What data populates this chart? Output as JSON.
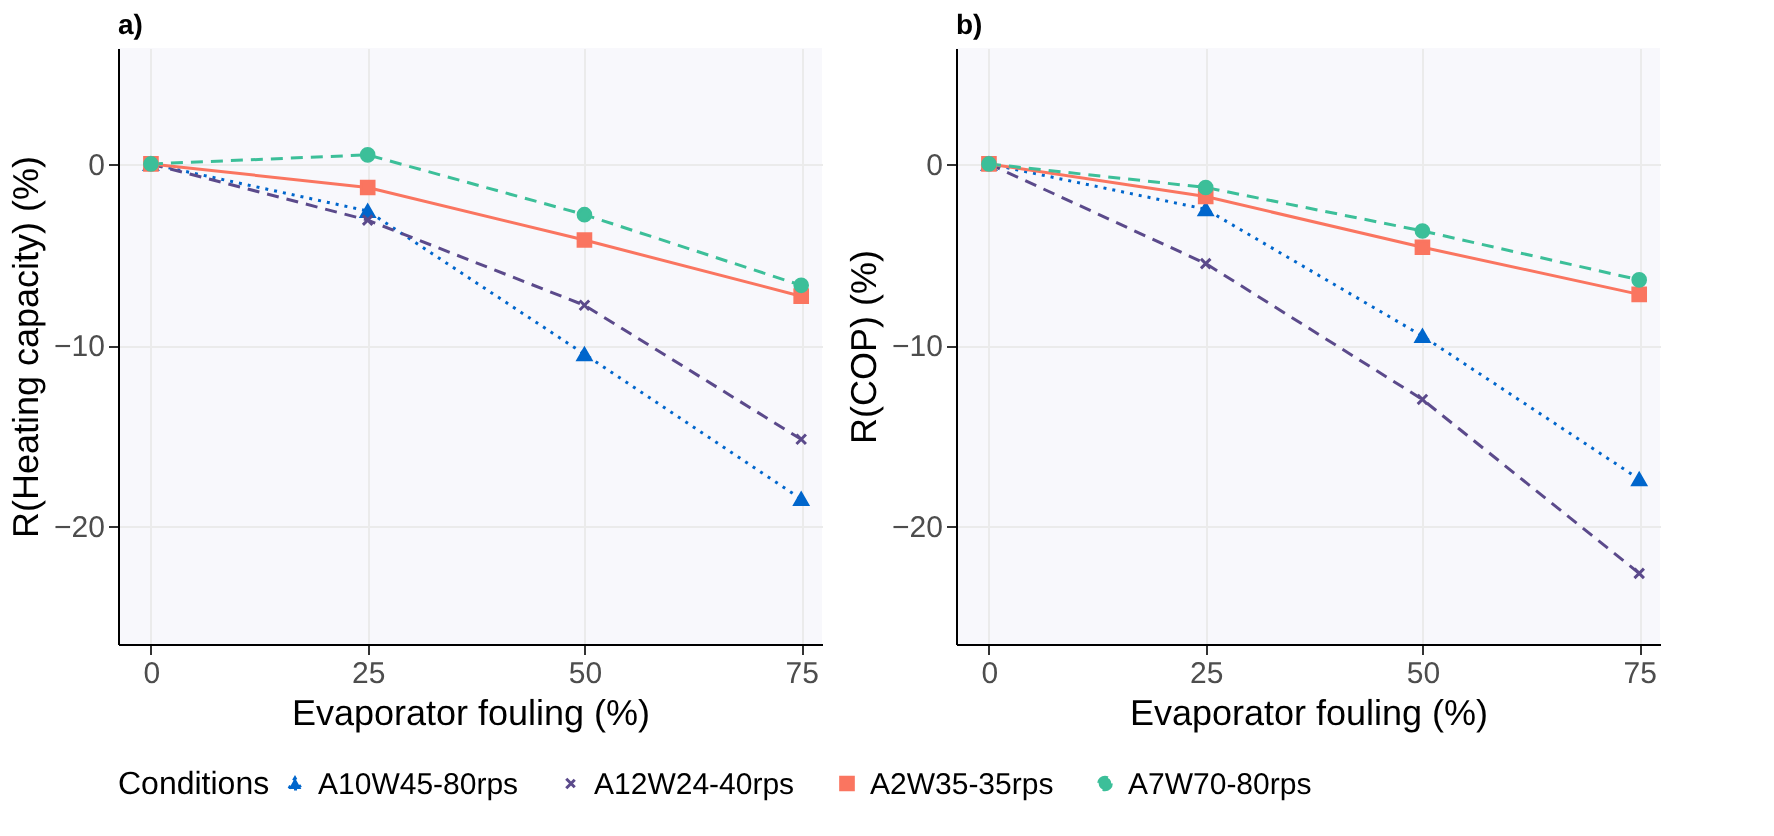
{
  "chart_data": [
    {
      "type": "line",
      "title": "a)",
      "xlabel": "Evaporator fouling (%)",
      "ylabel": "R(Heating capacity) (%)",
      "legend_title": "Conditions",
      "x": [
        0,
        25,
        50,
        75
      ],
      "xlim": [
        -3.8,
        77.4
      ],
      "xticks": [
        0,
        25,
        50,
        75
      ],
      "ylim": [
        -26.5,
        6.4
      ],
      "yticks": [
        0,
        -10,
        -20
      ],
      "grid": true,
      "legend": "bottom",
      "series": [
        {
          "name": "A10W45-80rps",
          "color": "#0066cc",
          "marker": "triangle",
          "line_style": "dotted",
          "values": [
            0,
            -2.6,
            -10.5,
            -18.5
          ]
        },
        {
          "name": "A12W24-40rps",
          "color": "#5b4a8b",
          "marker": "cross",
          "line_style": "dashed",
          "values": [
            0,
            -3.1,
            -7.8,
            -15.2
          ]
        },
        {
          "name": "A2W35-35rps",
          "color": "#fa7560",
          "marker": "square",
          "line_style": "solid",
          "values": [
            0,
            -1.3,
            -4.2,
            -7.3
          ]
        },
        {
          "name": "A7W70-80rps",
          "color": "#3cbf99",
          "marker": "circle",
          "line_style": "dashed",
          "values": [
            0,
            0.5,
            -2.8,
            -6.7
          ]
        }
      ]
    },
    {
      "type": "line",
      "title": "b)",
      "xlabel": "Evaporator fouling (%)",
      "ylabel": "R(COP) (%)",
      "x": [
        0,
        25,
        50,
        75
      ],
      "xlim": [
        -3.8,
        77.4
      ],
      "xticks": [
        0,
        25,
        50,
        75
      ],
      "ylim": [
        -26.5,
        6.4
      ],
      "yticks": [
        0,
        -10,
        -20
      ],
      "grid": true,
      "series": [
        {
          "name": "A10W45-80rps",
          "color": "#0066cc",
          "marker": "triangle",
          "line_style": "dotted",
          "values": [
            0,
            -2.5,
            -9.5,
            -17.4
          ]
        },
        {
          "name": "A12W24-40rps",
          "color": "#5b4a8b",
          "marker": "cross",
          "line_style": "dashed",
          "values": [
            0,
            -5.5,
            -13,
            -22.6
          ]
        },
        {
          "name": "A2W35-35rps",
          "color": "#fa7560",
          "marker": "square",
          "line_style": "solid",
          "values": [
            0,
            -1.8,
            -4.6,
            -7.2
          ]
        },
        {
          "name": "A7W70-80rps",
          "color": "#3cbf99",
          "marker": "circle",
          "line_style": "dashed",
          "values": [
            0,
            -1.3,
            -3.7,
            -6.4
          ]
        }
      ]
    }
  ]
}
